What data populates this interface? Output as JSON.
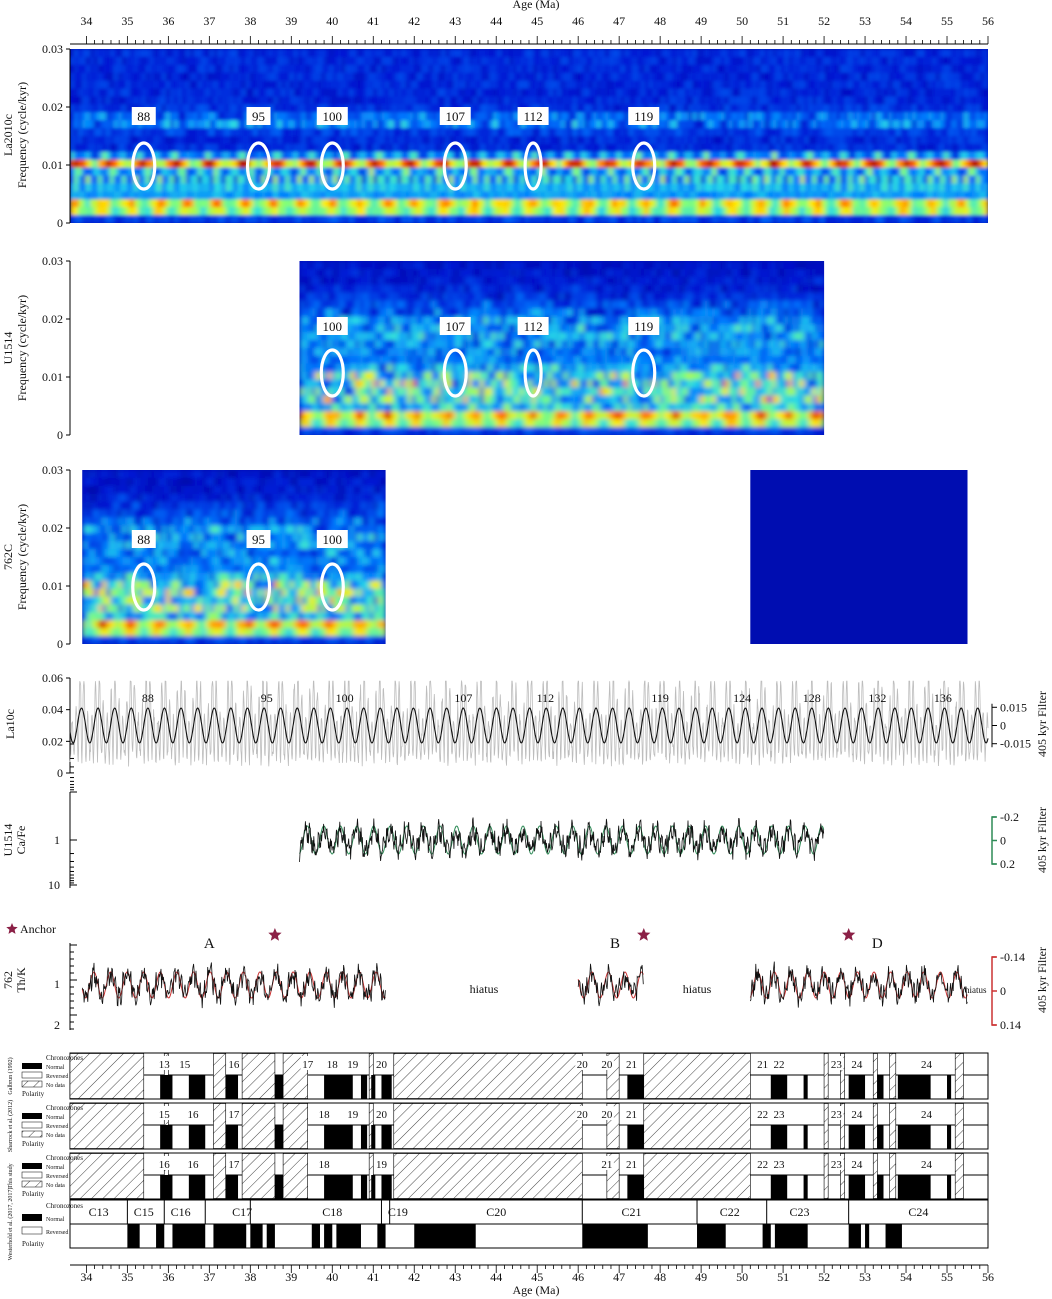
{
  "axes": {
    "x_label": "Age (Ma)",
    "x_ticks": [
      "34",
      "35",
      "36",
      "37",
      "38",
      "39",
      "40",
      "41",
      "42",
      "43",
      "44",
      "45",
      "46",
      "47",
      "48",
      "49",
      "50",
      "51",
      "52",
      "53",
      "54",
      "55",
      "56"
    ]
  },
  "colors": {
    "spectrum_low": "#00008f",
    "spectrum_mid": "#22d3d3",
    "spectrum_high": "#c00000",
    "ellipse": "#ffffff",
    "la10c_raw": "#bdbdbd",
    "filter_black": "#111111",
    "u1514_filter": "#2e8b57",
    "s762_filter": "#cc3333",
    "anchor_star": "#8b2046",
    "normal": "#000000"
  },
  "chart_data": [
    {
      "type": "heatmap",
      "panel": "La2010c",
      "ylabel_site": "La2010c",
      "ylabel": "Frequency (cycle/kyr)",
      "yticks": [
        "0",
        "0.01",
        "0.02",
        "0.03"
      ],
      "x_range": [
        33.6,
        56
      ],
      "y_range": [
        0,
        0.03
      ],
      "cycle_labels": [
        {
          "label": "88",
          "age": 35.4
        },
        {
          "label": "95",
          "age": 38.2
        },
        {
          "label": "100",
          "age": 40.0
        },
        {
          "label": "107",
          "age": 43.0
        },
        {
          "label": "112",
          "age": 44.9
        },
        {
          "label": "119",
          "age": 47.6
        }
      ]
    },
    {
      "type": "heatmap",
      "panel": "U1514",
      "ylabel_site": "U1514",
      "ylabel": "Frequency (cycle/kyr)",
      "yticks": [
        "0",
        "0.01",
        "0.02",
        "0.03"
      ],
      "x_range": [
        39.2,
        52.0
      ],
      "y_range": [
        0,
        0.03
      ],
      "cycle_labels": [
        {
          "label": "100",
          "age": 40.0
        },
        {
          "label": "107",
          "age": 43.0
        },
        {
          "label": "112",
          "age": 44.9
        },
        {
          "label": "119",
          "age": 47.6
        }
      ]
    },
    {
      "type": "heatmap",
      "panel": "762C",
      "ylabel_site": "762C",
      "ylabel": "Frequency (cycle/kyr)",
      "yticks": [
        "0",
        "0.01",
        "0.02",
        "0.03"
      ],
      "x_ranges": [
        [
          33.9,
          41.3
        ],
        [
          50.2,
          55.5
        ]
      ],
      "y_range": [
        0,
        0.03
      ],
      "cycle_labels": [
        {
          "label": "88",
          "age": 35.4
        },
        {
          "label": "95",
          "age": 38.2
        },
        {
          "label": "100",
          "age": 40.0
        }
      ]
    },
    {
      "type": "line",
      "panel": "La10c",
      "ylabel": "La10c",
      "yticks": [
        "0",
        "0.02",
        "0.04",
        "0.06"
      ],
      "y_range": [
        0,
        0.06
      ],
      "right_label": "405 kyr Filter",
      "right_ticks": [
        "0.015",
        "0",
        "-0.015"
      ],
      "filter_period_myr": 0.405,
      "mean": 0.03,
      "filter_amplitude": 0.011,
      "cycle_labels": [
        {
          "label": "88",
          "age": 35.5
        },
        {
          "label": "95",
          "age": 38.4
        },
        {
          "label": "100",
          "age": 40.3
        },
        {
          "label": "107",
          "age": 43.2
        },
        {
          "label": "112",
          "age": 45.2
        },
        {
          "label": "119",
          "age": 48.0
        },
        {
          "label": "124",
          "age": 50.0
        },
        {
          "label": "128",
          "age": 51.7
        },
        {
          "label": "132",
          "age": 53.3
        },
        {
          "label": "136",
          "age": 54.9
        }
      ]
    },
    {
      "type": "line",
      "panel": "U1514 Ca/Fe",
      "ylabel_site": "U1514",
      "ylabel": "Ca/Fe",
      "yticks": [
        "1",
        "10"
      ],
      "y_scale": "log (reversed)",
      "x_range": [
        39.2,
        52.0
      ],
      "right_label": "405 kyr Filter",
      "right_ticks": [
        "-0.2",
        "0",
        "0.2"
      ],
      "filter_period_myr": 0.405
    },
    {
      "type": "line",
      "panel": "762 Th/K",
      "ylabel_site": "762",
      "ylabel": "Th/K",
      "yticks": [
        "1",
        "2"
      ],
      "y_scale": "reversed",
      "segments": [
        [
          33.9,
          41.3
        ],
        [
          46.0,
          47.6
        ],
        [
          50.2,
          55.5
        ]
      ],
      "right_label": "405 kyr Filter",
      "right_ticks": [
        "-0.14",
        "0",
        "0.14"
      ],
      "filter_period_myr": 0.405,
      "legend": "Anchor",
      "anchors": [
        {
          "label": "A",
          "age": 38.6
        },
        {
          "label": "B",
          "age": 47.6
        },
        {
          "label": "D",
          "age": 52.6
        }
      ],
      "hiatus_labels": [
        {
          "text": "hiatus",
          "age": 43.7
        },
        {
          "text": "hiatus",
          "age": 48.9
        },
        {
          "text": "hiatus",
          "age": 55.7
        }
      ]
    },
    {
      "type": "table",
      "panel": "Magnetostratigraphy",
      "rows": [
        {
          "source": "Galbrun (1992)",
          "legend": [
            "Chronozones",
            "Normal",
            "Reversed",
            "No data",
            "Polarity"
          ],
          "chronozones": [
            {
              "label": "13",
              "age": 35.9
            },
            {
              "label": "15",
              "age": 36.4
            },
            {
              "label": "16",
              "age": 37.6
            },
            {
              "label": "17",
              "age": 39.4
            },
            {
              "label": "18",
              "age": 40.0
            },
            {
              "label": "19",
              "age": 40.5
            },
            {
              "label": "20",
              "age": 41.2
            },
            {
              "label": "20",
              "age": 46.1
            },
            {
              "label": "20",
              "age": 46.7
            },
            {
              "label": "21",
              "age": 47.3
            },
            {
              "label": "21",
              "age": 50.5
            },
            {
              "label": "22",
              "age": 50.9
            },
            {
              "label": "23",
              "age": 52.3
            },
            {
              "label": "24",
              "age": 52.8
            },
            {
              "label": "24",
              "age": 54.5
            }
          ]
        },
        {
          "source": "Sharrock et al. (2012)",
          "legend": [
            "Chronozones",
            "Normal",
            "Reversed",
            "No data",
            "Polarity"
          ],
          "chronozones": [
            {
              "label": "15",
              "age": 35.9
            },
            {
              "label": "16",
              "age": 36.6
            },
            {
              "label": "17",
              "age": 37.6
            },
            {
              "label": "18",
              "age": 39.8
            },
            {
              "label": "19",
              "age": 40.5
            },
            {
              "label": "20",
              "age": 41.2
            },
            {
              "label": "20",
              "age": 46.1
            },
            {
              "label": "20",
              "age": 46.7
            },
            {
              "label": "21",
              "age": 47.3
            },
            {
              "label": "22",
              "age": 50.5
            },
            {
              "label": "23",
              "age": 50.9
            },
            {
              "label": "23",
              "age": 52.3
            },
            {
              "label": "24",
              "age": 52.8
            },
            {
              "label": "24",
              "age": 54.5
            }
          ]
        },
        {
          "source": "This study",
          "legend": [
            "Chronozones",
            "Normal",
            "Reversed",
            "No data",
            "Polarity"
          ],
          "chronozones": [
            {
              "label": "16",
              "age": 35.9
            },
            {
              "label": "16",
              "age": 36.6
            },
            {
              "label": "17",
              "age": 37.6
            },
            {
              "label": "18",
              "age": 39.8
            },
            {
              "label": "19",
              "age": 41.2
            },
            {
              "label": "21",
              "age": 46.7
            },
            {
              "label": "21",
              "age": 47.3
            },
            {
              "label": "22",
              "age": 50.5
            },
            {
              "label": "23",
              "age": 50.9
            },
            {
              "label": "23",
              "age": 52.3
            },
            {
              "label": "24",
              "age": 52.8
            },
            {
              "label": "24",
              "age": 54.5
            }
          ]
        },
        {
          "source": "Westerhold et al. (2017, 2017)",
          "legend": [
            "Chronozones",
            "Normal",
            "Reversed",
            "Polarity"
          ],
          "chronozones": [
            {
              "label": "C13",
              "age": 34.3
            },
            {
              "label": "C15",
              "age": 35.4
            },
            {
              "label": "C16",
              "age": 36.3
            },
            {
              "label": "C17",
              "age": 37.8
            },
            {
              "label": "C18",
              "age": 40.0
            },
            {
              "label": "C19",
              "age": 41.6
            },
            {
              "label": "C20",
              "age": 44.0
            },
            {
              "label": "C21",
              "age": 47.3
            },
            {
              "label": "C22",
              "age": 49.7
            },
            {
              "label": "C23",
              "age": 51.4
            },
            {
              "label": "C24",
              "age": 54.3
            }
          ]
        }
      ]
    }
  ]
}
